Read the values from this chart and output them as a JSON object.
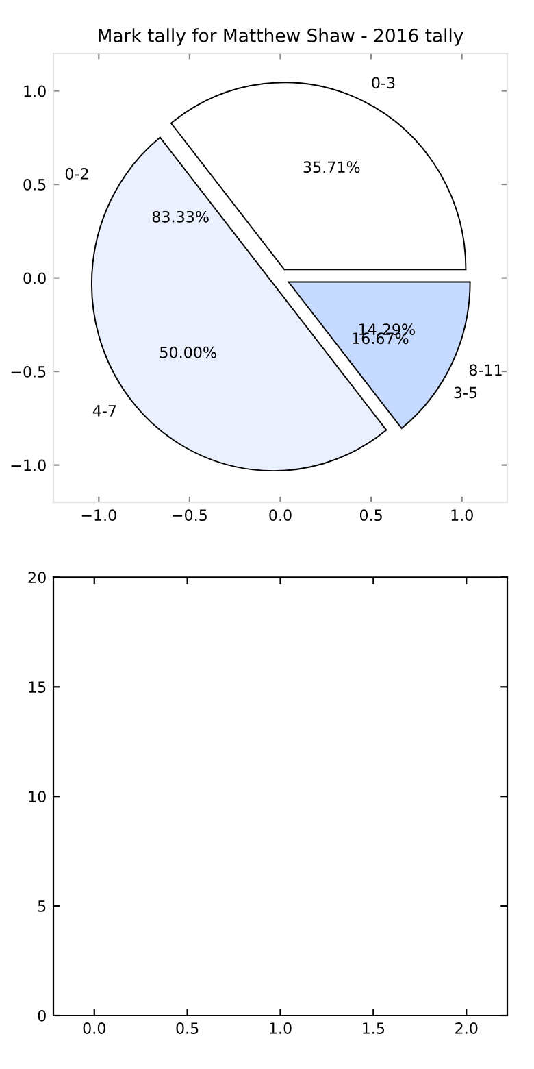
{
  "chart_data": [
    {
      "type": "scatter",
      "title": "Mark tally for Matthew Shaw - 2016 tally",
      "xlim": [
        -1.25,
        1.25
      ],
      "ylim": [
        -1.2,
        1.2
      ],
      "xticks": [
        {
          "value": -1.0,
          "label": "−1.0"
        },
        {
          "value": -0.5,
          "label": "−0.5"
        },
        {
          "value": 0.0,
          "label": "0.0"
        },
        {
          "value": 0.5,
          "label": "0.5"
        },
        {
          "value": 1.0,
          "label": "1.0"
        }
      ],
      "yticks": [
        {
          "value": -1.0,
          "label": "−1.0"
        },
        {
          "value": -0.5,
          "label": "−0.5"
        },
        {
          "value": 0.0,
          "label": "0.0"
        },
        {
          "value": 0.5,
          "label": "0.5"
        },
        {
          "value": 1.0,
          "label": "1.0"
        }
      ]
    },
    {
      "type": "pie",
      "categories": [
        "0-3",
        "4-7",
        "8-11"
      ],
      "values": [
        35.71,
        50.0,
        14.29
      ],
      "colors": [
        "#ffffff",
        "#eaf0fe",
        "#c6d9fe"
      ],
      "value_labels": [
        "35.71%",
        "50.00%",
        "14.29%"
      ],
      "annotations": [
        "0-2",
        "83.33%",
        "3-5",
        "16.67%"
      ]
    },
    {
      "type": "line",
      "xlim": [
        -0.22,
        2.22
      ],
      "ylim": [
        0,
        20
      ],
      "xticks": [
        {
          "value": 0,
          "label": "0.0"
        },
        0.5,
        {
          "value": 1,
          "label": "1.0"
        },
        1.5,
        {
          "value": 2,
          "label": "2.0"
        }
      ],
      "yticks": [
        0,
        5,
        10,
        15,
        20
      ]
    }
  ]
}
